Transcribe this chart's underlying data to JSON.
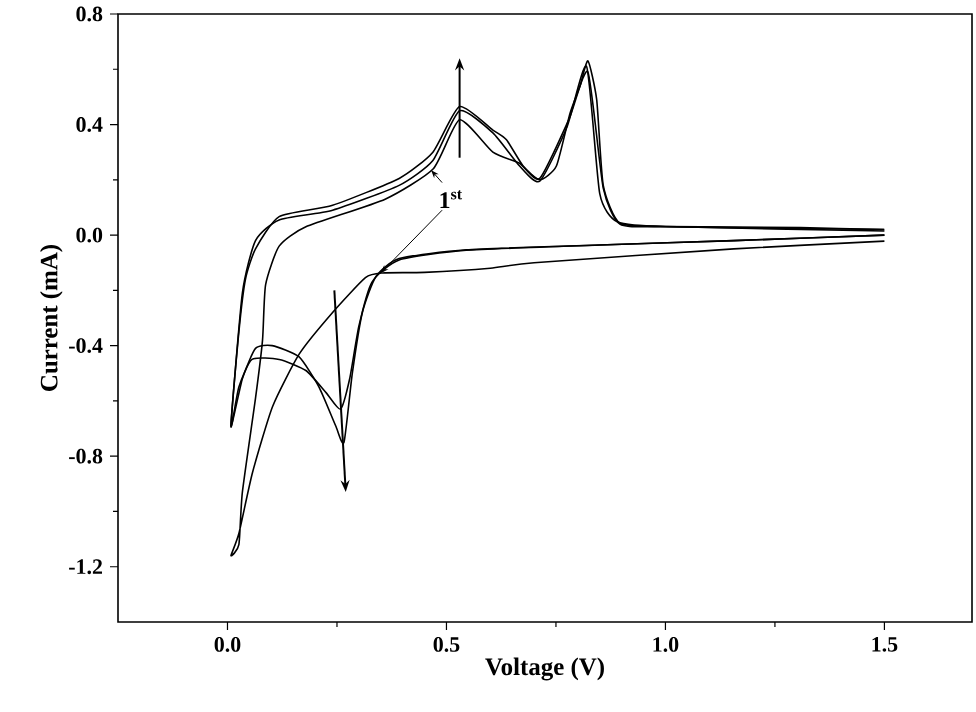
{
  "chart_data": {
    "type": "line",
    "xlabel": "Voltage (V)",
    "ylabel": "Current (mA)",
    "xlim": [
      -0.25,
      1.7
    ],
    "ylim": [
      -1.4,
      0.8
    ],
    "xticks": [
      {
        "value": 0,
        "label": "0.0"
      },
      {
        "value": 0.5,
        "label": "0.5"
      },
      {
        "value": 1.0,
        "label": "1.0"
      },
      {
        "value": 1.5,
        "label": "1.5"
      }
    ],
    "yticks": [
      {
        "value": -1.2,
        "label": "-1.2"
      },
      {
        "value": -0.8,
        "label": "-0.8"
      },
      {
        "value": -0.4,
        "label": "-0.4"
      },
      {
        "value": 0,
        "label": "0.0"
      },
      {
        "value": 0.4,
        "label": "0.4"
      },
      {
        "value": 0.8,
        "label": "0.8"
      }
    ],
    "grid": false,
    "marker": "none",
    "line_style": "solid",
    "annotations": [
      {
        "text": "1$^{st}$",
        "x": 0.35,
        "y": -0.137
      }
    ],
    "series": [
      {
        "color": "#000000",
        "x": [
          1.5,
          1.156,
          0.7,
          0.6,
          0.45,
          0.354,
          0.315,
          0.24,
          0.164,
          0.103,
          0.057,
          0.026,
          0.008,
          0.026,
          0.034,
          0.064,
          0.08,
          0.087,
          0.118,
          0.179,
          0.36,
          0.47,
          0.53,
          0.606,
          0.667,
          0.713,
          0.78,
          0.823,
          0.858,
          0.896,
          1.0,
          1.5
        ],
        "values": [
          -0.022,
          -0.05,
          -0.1,
          -0.12,
          -0.135,
          -0.137,
          -0.154,
          -0.28,
          -0.43,
          -0.62,
          -0.86,
          -1.08,
          -1.16,
          -1.12,
          -0.93,
          -0.59,
          -0.38,
          -0.18,
          -0.04,
          0.03,
          0.13,
          0.24,
          0.417,
          0.3,
          0.26,
          0.205,
          0.42,
          0.59,
          0.17,
          0.04,
          0.03,
          0.02
        ]
      },
      {
        "color": "#000000",
        "x": [
          1.5,
          1.156,
          0.85,
          0.545,
          0.392,
          0.33,
          0.3,
          0.279,
          0.258,
          0.225,
          0.179,
          0.118,
          0.056,
          0.026,
          0.008,
          0.034,
          0.064,
          0.118,
          0.24,
          0.392,
          0.469,
          0.53,
          0.606,
          0.667,
          0.713,
          0.775,
          0.82,
          0.85,
          0.89,
          1.0,
          1.5
        ],
        "values": [
          0.0,
          -0.02,
          -0.036,
          -0.055,
          -0.09,
          -0.17,
          -0.33,
          -0.52,
          -0.63,
          -0.57,
          -0.49,
          -0.45,
          -0.45,
          -0.55,
          -0.69,
          -0.21,
          -0.02,
          0.055,
          0.09,
          0.18,
          0.27,
          0.45,
          0.37,
          0.25,
          0.195,
          0.39,
          0.61,
          0.15,
          0.048,
          0.031,
          0.015
        ]
      },
      {
        "color": "#000000",
        "x": [
          1.5,
          1.156,
          0.85,
          0.545,
          0.392,
          0.339,
          0.308,
          0.285,
          0.266,
          0.247,
          0.209,
          0.163,
          0.102,
          0.064,
          0.034,
          0.008,
          0.026,
          0.041,
          0.064,
          0.118,
          0.24,
          0.392,
          0.469,
          0.53,
          0.606,
          0.637,
          0.675,
          0.713,
          0.751,
          0.782,
          0.805,
          0.823,
          0.843,
          0.858,
          0.896,
          1.003,
          1.308,
          1.499
        ],
        "values": [
          0.0,
          -0.02,
          -0.036,
          -0.053,
          -0.085,
          -0.15,
          -0.28,
          -0.5,
          -0.75,
          -0.69,
          -0.55,
          -0.44,
          -0.4,
          -0.41,
          -0.52,
          -0.69,
          -0.35,
          -0.16,
          -0.05,
          0.067,
          0.108,
          0.205,
          0.3,
          0.465,
          0.38,
          0.345,
          0.25,
          0.2,
          0.25,
          0.44,
          0.54,
          0.63,
          0.49,
          0.18,
          0.043,
          0.031,
          0.027,
          0.02
        ]
      }
    ]
  }
}
